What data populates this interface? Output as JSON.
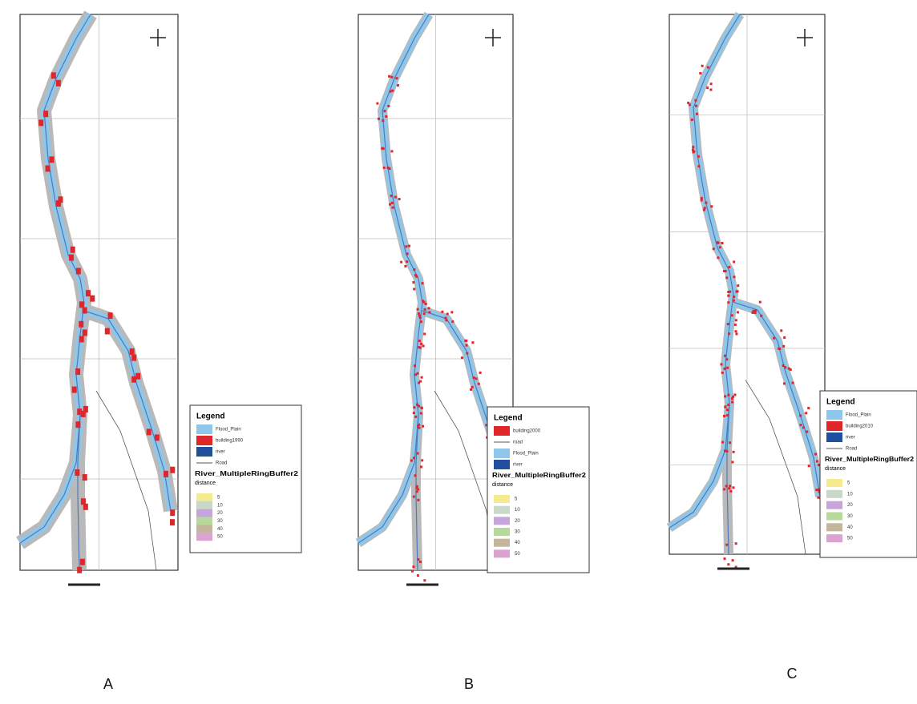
{
  "panels": [
    {
      "label": "A",
      "legend": {
        "title": "Legend",
        "items": [
          {
            "label": "Flood_Plain",
            "color": "#8fc7ea"
          },
          {
            "label": "building1990",
            "color": "#e0262a"
          },
          {
            "label": "river",
            "color": "#1f4f9e"
          },
          {
            "label": "Road"
          }
        ],
        "buffer_title": "River_MultipleRingBuffer2",
        "distance_title": "distance",
        "distances": [
          {
            "label": "5",
            "color": "#f4ea8e"
          },
          {
            "label": "10",
            "color": "#c9d9c9"
          },
          {
            "label": "20",
            "color": "#c6a6d8"
          },
          {
            "label": "30",
            "color": "#b8d99c"
          },
          {
            "label": "40",
            "color": "#c4b69b"
          },
          {
            "label": "50",
            "color": "#daa3d0"
          }
        ]
      }
    },
    {
      "label": "B",
      "legend": {
        "title": "Legend",
        "items": [
          {
            "label": "building2000",
            "color": "#e0262a"
          },
          {
            "label": "road"
          },
          {
            "label": "Flood_Plain",
            "color": "#8fc7ea"
          },
          {
            "label": "river",
            "color": "#1f4f9e"
          }
        ],
        "buffer_title": "River_MultipleRingBuffer2",
        "distance_title": "distance",
        "distances": [
          {
            "label": "5",
            "color": "#f4ea8e"
          },
          {
            "label": "10",
            "color": "#c9d9c9"
          },
          {
            "label": "20",
            "color": "#c6a6d8"
          },
          {
            "label": "30",
            "color": "#b8d99c"
          },
          {
            "label": "40",
            "color": "#c4b69b"
          },
          {
            "label": "50",
            "color": "#daa3d0"
          }
        ]
      }
    },
    {
      "label": "C",
      "legend": {
        "title": "Legend",
        "items": [
          {
            "label": "Flood_Plain",
            "color": "#8fc7ea"
          },
          {
            "label": "building2010",
            "color": "#e0262a"
          },
          {
            "label": "river",
            "color": "#1f4f9e"
          },
          {
            "label": "Road"
          }
        ],
        "buffer_title": "River_MultipleRingBuffer2",
        "distance_title": "distance",
        "distances": [
          {
            "label": "5",
            "color": "#f4ea8e"
          },
          {
            "label": "10",
            "color": "#c9d9c9"
          },
          {
            "label": "20",
            "color": "#c6a6d8"
          },
          {
            "label": "30",
            "color": "#b8d99c"
          },
          {
            "label": "40",
            "color": "#c4b69b"
          },
          {
            "label": "50",
            "color": "#daa3d0"
          }
        ]
      }
    }
  ]
}
